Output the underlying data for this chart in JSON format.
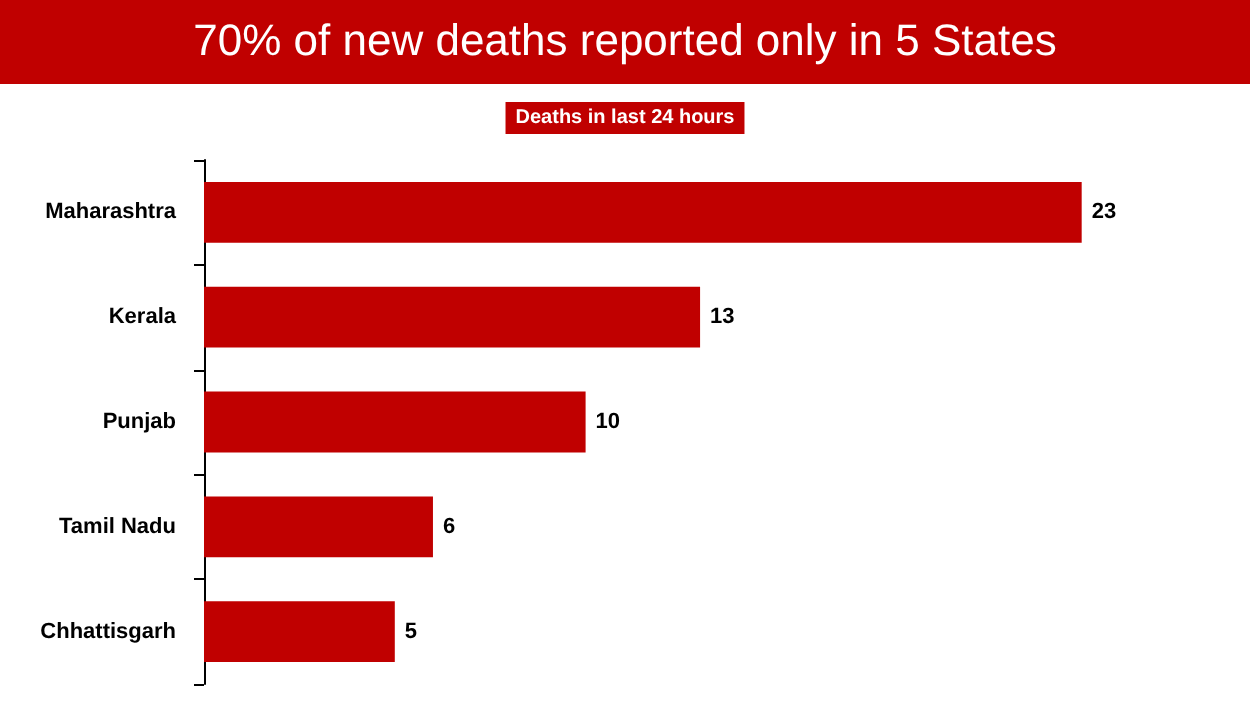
{
  "chart_data": {
    "type": "bar",
    "orientation": "horizontal",
    "title": "70% of new deaths reported only in 5 States",
    "subtitle": "Deaths in last 24 hours",
    "categories": [
      "Maharashtra",
      "Kerala",
      "Punjab",
      "Tamil Nadu",
      "Chhattisgarh"
    ],
    "values": [
      23,
      13,
      10,
      6,
      5
    ],
    "color": "#c00000",
    "data_labels": true
  }
}
